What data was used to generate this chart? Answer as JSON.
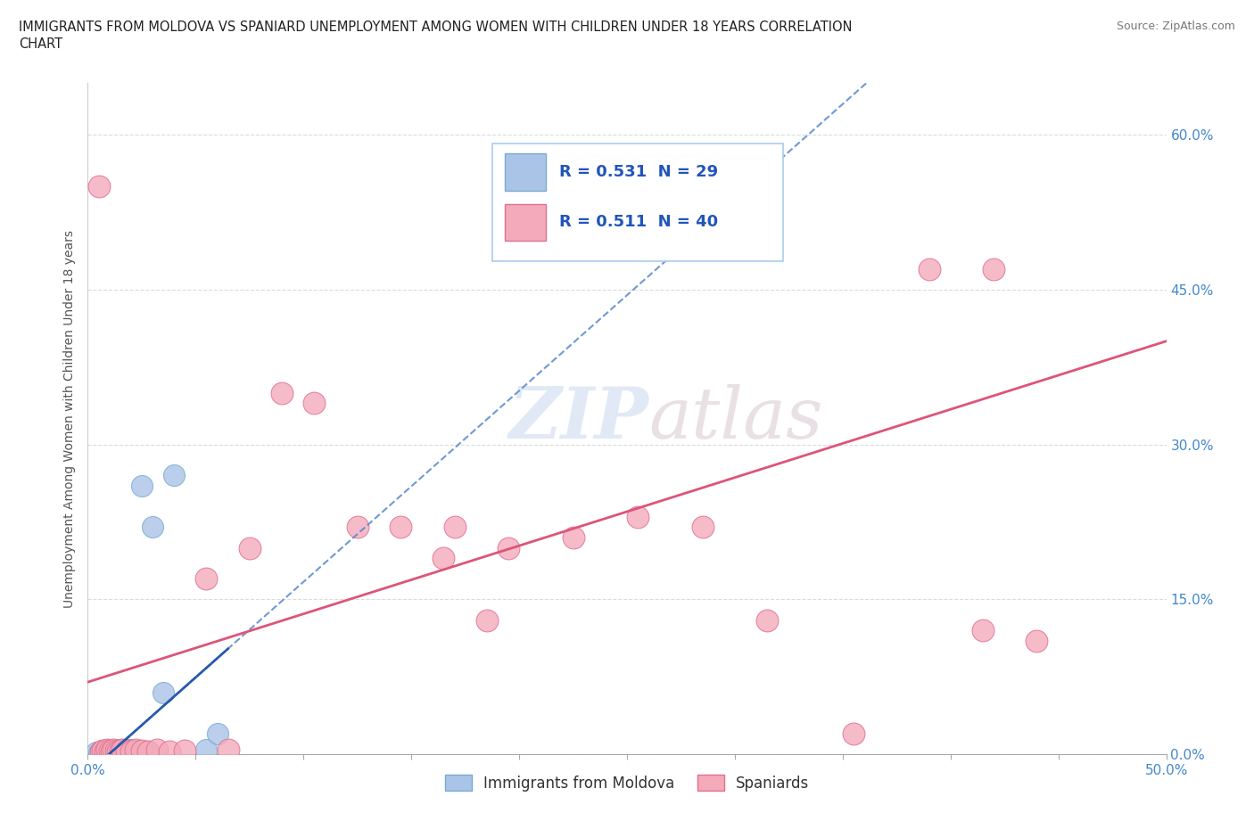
{
  "title_line1": "IMMIGRANTS FROM MOLDOVA VS SPANIARD UNEMPLOYMENT AMONG WOMEN WITH CHILDREN UNDER 18 YEARS CORRELATION",
  "title_line2": "CHART",
  "source_text": "Source: ZipAtlas.com",
  "ylabel": "Unemployment Among Women with Children Under 18 years",
  "xlim": [
    0.0,
    0.5
  ],
  "ylim": [
    0.0,
    0.65
  ],
  "ytick_values": [
    0.0,
    0.15,
    0.3,
    0.45,
    0.6
  ],
  "ytick_labels": [
    "0.0%",
    "15.0%",
    "30.0%",
    "45.0%",
    "60.0%"
  ],
  "xtick_values": [
    0.0,
    0.05,
    0.1,
    0.15,
    0.2,
    0.25,
    0.3,
    0.35,
    0.4,
    0.45,
    0.5
  ],
  "xtick_labels": [
    "0.0%",
    "",
    "",
    "",
    "",
    "",
    "",
    "",
    "",
    "",
    "50.0%"
  ],
  "watermark": "ZIPatlas",
  "moldova_color": "#aac4e8",
  "moldova_edge": "#7aaad0",
  "spaniard_color": "#f4aabb",
  "spaniard_edge": "#e07090",
  "moldova_R": 0.531,
  "moldova_N": 29,
  "spaniard_R": 0.511,
  "spaniard_N": 40,
  "moldova_line_color": "#5588cc",
  "moldova_line_solid_color": "#2255aa",
  "spaniard_line_color": "#dd5577",
  "grid_color": "#cccccc",
  "label_color": "#4488cc",
  "moldova_x": [
    0.005,
    0.007,
    0.008,
    0.009,
    0.01,
    0.01,
    0.012,
    0.013,
    0.014,
    0.015,
    0.015,
    0.016,
    0.017,
    0.018,
    0.02,
    0.02,
    0.021,
    0.022,
    0.023,
    0.025,
    0.025,
    0.028,
    0.03,
    0.03,
    0.035,
    0.04,
    0.05,
    0.06,
    0.07
  ],
  "moldova_y": [
    0.0,
    0.002,
    0.001,
    0.003,
    0.001,
    0.005,
    0.003,
    0.002,
    0.004,
    0.003,
    0.006,
    0.004,
    0.003,
    0.006,
    0.002,
    0.005,
    0.003,
    0.005,
    0.004,
    0.005,
    0.26,
    0.003,
    0.002,
    0.22,
    0.06,
    0.27,
    0.005,
    0.02,
    0.02
  ],
  "spaniard_x": [
    0.005,
    0.007,
    0.008,
    0.01,
    0.01,
    0.012,
    0.013,
    0.015,
    0.015,
    0.018,
    0.02,
    0.022,
    0.025,
    0.028,
    0.03,
    0.035,
    0.04,
    0.045,
    0.05,
    0.055,
    0.06,
    0.065,
    0.07,
    0.08,
    0.09,
    0.1,
    0.11,
    0.12,
    0.13,
    0.15,
    0.17,
    0.19,
    0.22,
    0.25,
    0.28,
    0.3,
    0.33,
    0.37,
    0.4,
    0.45
  ],
  "spaniard_y": [
    0.55,
    0.004,
    0.003,
    0.002,
    0.005,
    0.003,
    0.004,
    0.002,
    0.005,
    0.004,
    0.003,
    0.005,
    0.004,
    0.003,
    0.005,
    0.004,
    0.005,
    0.004,
    0.005,
    0.004,
    0.17,
    0.005,
    0.19,
    0.35,
    0.34,
    0.22,
    0.22,
    0.2,
    0.21,
    0.22,
    0.2,
    0.22,
    0.19,
    0.22,
    0.13,
    0.11,
    0.08,
    0.02,
    0.47,
    0.12
  ]
}
